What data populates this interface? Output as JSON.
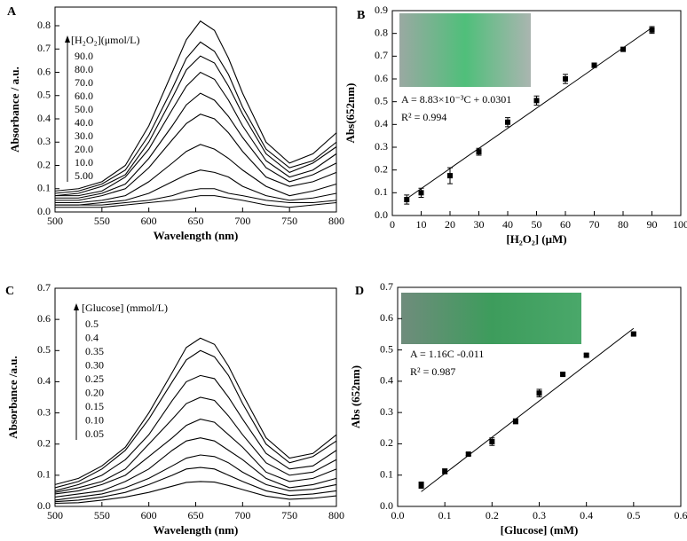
{
  "chart_data": [
    {
      "type": "line",
      "panel_label": "A",
      "xlabel": "Wavelength (nm)",
      "ylabel": "Absorbance / a.u.",
      "legend_title": "[H₂O₂](μmol/L)",
      "x": [
        500,
        525,
        550,
        575,
        600,
        625,
        640,
        655,
        670,
        685,
        700,
        725,
        750,
        775,
        800
      ],
      "series": [
        {
          "name": "90.0",
          "color": "#000000",
          "values": [
            0.09,
            0.1,
            0.13,
            0.2,
            0.37,
            0.6,
            0.74,
            0.82,
            0.78,
            0.66,
            0.51,
            0.3,
            0.21,
            0.25,
            0.34
          ]
        },
        {
          "name": "80.0",
          "color": "#000000",
          "values": [
            0.08,
            0.09,
            0.12,
            0.18,
            0.33,
            0.53,
            0.66,
            0.73,
            0.69,
            0.59,
            0.45,
            0.27,
            0.19,
            0.22,
            0.3
          ]
        },
        {
          "name": "70.0",
          "color": "#000000",
          "values": [
            0.07,
            0.08,
            0.11,
            0.16,
            0.3,
            0.49,
            0.61,
            0.67,
            0.64,
            0.54,
            0.42,
            0.25,
            0.17,
            0.21,
            0.28
          ]
        },
        {
          "name": "60.0",
          "color": "#000000",
          "values": [
            0.07,
            0.07,
            0.09,
            0.15,
            0.27,
            0.44,
            0.54,
            0.6,
            0.57,
            0.48,
            0.37,
            0.22,
            0.15,
            0.18,
            0.25
          ]
        },
        {
          "name": "50.0",
          "color": "#000000",
          "values": [
            0.06,
            0.06,
            0.08,
            0.12,
            0.23,
            0.37,
            0.46,
            0.51,
            0.48,
            0.41,
            0.32,
            0.19,
            0.13,
            0.16,
            0.21
          ]
        },
        {
          "name": "40.0",
          "color": "#000000",
          "values": [
            0.05,
            0.05,
            0.07,
            0.1,
            0.19,
            0.31,
            0.38,
            0.42,
            0.4,
            0.34,
            0.26,
            0.15,
            0.11,
            0.13,
            0.17
          ]
        },
        {
          "name": "30.0",
          "color": "#000000",
          "values": [
            0.04,
            0.04,
            0.05,
            0.07,
            0.13,
            0.21,
            0.26,
            0.29,
            0.27,
            0.23,
            0.18,
            0.11,
            0.07,
            0.09,
            0.12
          ]
        },
        {
          "name": "20.0",
          "color": "#000000",
          "values": [
            0.03,
            0.03,
            0.04,
            0.05,
            0.08,
            0.13,
            0.16,
            0.18,
            0.17,
            0.15,
            0.11,
            0.07,
            0.05,
            0.06,
            0.08
          ]
        },
        {
          "name": "10.0",
          "color": "#000000",
          "values": [
            0.03,
            0.03,
            0.03,
            0.04,
            0.05,
            0.07,
            0.09,
            0.1,
            0.1,
            0.08,
            0.07,
            0.05,
            0.04,
            0.04,
            0.05
          ]
        },
        {
          "name": "5.00",
          "color": "#000000",
          "values": [
            0.02,
            0.02,
            0.02,
            0.03,
            0.04,
            0.05,
            0.06,
            0.07,
            0.07,
            0.06,
            0.05,
            0.03,
            0.02,
            0.03,
            0.04
          ]
        }
      ],
      "xlim": [
        500,
        800
      ],
      "xticks": [
        500,
        550,
        600,
        650,
        700,
        750,
        800
      ],
      "ylim": [
        0,
        0.88
      ],
      "yticks": [
        {
          "value": 0,
          "label": "0.0"
        },
        0.1,
        0.2,
        0.3,
        0.4,
        0.5,
        0.6,
        0.7,
        0.8
      ]
    },
    {
      "type": "scatter",
      "panel_label": "B",
      "xlabel": "[H₂O₂] (μM)",
      "ylabel": "Abs(652nm)",
      "annotations": [
        "A = 8.83×10⁻³C + 0.0301",
        "R² = 0.994"
      ],
      "x": [
        5,
        10,
        20,
        30,
        40,
        50,
        60,
        70,
        80,
        90
      ],
      "values": [
        0.07,
        0.1,
        0.175,
        0.28,
        0.41,
        0.505,
        0.6,
        0.66,
        0.73,
        0.815
      ],
      "errors": [
        0.02,
        0.02,
        0.035,
        0.015,
        0.02,
        0.02,
        0.02,
        0.01,
        0.005,
        0.015
      ],
      "color": "#000000",
      "fit": {
        "x": [
          5,
          90
        ],
        "y": [
          0.074,
          0.825
        ]
      },
      "xlim": [
        0,
        100
      ],
      "xticks": [
        0,
        10,
        20,
        30,
        40,
        50,
        60,
        70,
        80,
        90,
        100
      ],
      "ylim": [
        0,
        0.9
      ],
      "yticks": [
        {
          "value": 0,
          "label": "0.0"
        },
        0.1,
        0.2,
        0.3,
        0.4,
        0.5,
        0.6,
        0.7,
        0.8,
        0.9
      ]
    },
    {
      "type": "line",
      "panel_label": "C",
      "xlabel": "Wavelength (nm)",
      "ylabel": "Absorbance /a.u.",
      "legend_title": "[Glucose] (mmol/L)",
      "x": [
        500,
        525,
        550,
        575,
        600,
        625,
        640,
        655,
        670,
        685,
        700,
        725,
        750,
        775,
        800
      ],
      "series": [
        {
          "name": "0.5",
          "color": "#000000",
          "values": [
            0.07,
            0.09,
            0.13,
            0.19,
            0.3,
            0.43,
            0.51,
            0.54,
            0.52,
            0.45,
            0.36,
            0.22,
            0.155,
            0.17,
            0.23
          ]
        },
        {
          "name": "0.4",
          "color": "#000000",
          "values": [
            0.06,
            0.08,
            0.12,
            0.18,
            0.28,
            0.4,
            0.47,
            0.5,
            0.48,
            0.42,
            0.33,
            0.2,
            0.14,
            0.16,
            0.21
          ]
        },
        {
          "name": "0.35",
          "color": "#000000",
          "values": [
            0.05,
            0.07,
            0.1,
            0.15,
            0.23,
            0.34,
            0.4,
            0.42,
            0.41,
            0.35,
            0.28,
            0.17,
            0.12,
            0.13,
            0.18
          ]
        },
        {
          "name": "0.30",
          "color": "#000000",
          "values": [
            0.045,
            0.06,
            0.08,
            0.12,
            0.2,
            0.28,
            0.33,
            0.35,
            0.34,
            0.29,
            0.23,
            0.14,
            0.1,
            0.11,
            0.15
          ]
        },
        {
          "name": "0.25",
          "color": "#000000",
          "values": [
            0.04,
            0.05,
            0.07,
            0.1,
            0.16,
            0.22,
            0.26,
            0.28,
            0.27,
            0.23,
            0.19,
            0.11,
            0.08,
            0.09,
            0.12
          ]
        },
        {
          "name": "0.20",
          "color": "#000000",
          "values": [
            0.03,
            0.04,
            0.05,
            0.08,
            0.12,
            0.18,
            0.21,
            0.22,
            0.21,
            0.18,
            0.15,
            0.09,
            0.06,
            0.07,
            0.09
          ]
        },
        {
          "name": "0.15",
          "color": "#000000",
          "values": [
            0.02,
            0.03,
            0.04,
            0.06,
            0.09,
            0.13,
            0.155,
            0.165,
            0.16,
            0.14,
            0.11,
            0.07,
            0.05,
            0.055,
            0.07
          ]
        },
        {
          "name": "0.10",
          "color": "#000000",
          "values": [
            0.015,
            0.02,
            0.03,
            0.045,
            0.07,
            0.1,
            0.12,
            0.125,
            0.12,
            0.1,
            0.08,
            0.05,
            0.035,
            0.04,
            0.05
          ]
        },
        {
          "name": "0.05",
          "color": "#000000",
          "values": [
            0.01,
            0.012,
            0.02,
            0.03,
            0.045,
            0.065,
            0.077,
            0.08,
            0.078,
            0.067,
            0.054,
            0.033,
            0.023,
            0.026,
            0.034
          ]
        }
      ],
      "xlim": [
        500,
        800
      ],
      "xticks": [
        500,
        550,
        600,
        650,
        700,
        750,
        800
      ],
      "ylim": [
        0,
        0.7
      ],
      "yticks": [
        {
          "value": 0,
          "label": "0.0"
        },
        0.1,
        0.2,
        0.3,
        0.4,
        0.5,
        0.6,
        0.7
      ]
    },
    {
      "type": "scatter",
      "panel_label": "D",
      "xlabel": "[Glucose] (mM)",
      "ylabel": "Abs (652nm)",
      "annotations": [
        "A = 1.16C -0.011",
        "R² = 0.987"
      ],
      "x": [
        0.05,
        0.1,
        0.15,
        0.2,
        0.25,
        0.3,
        0.35,
        0.4,
        0.5
      ],
      "values": [
        0.068,
        0.112,
        0.167,
        0.207,
        0.272,
        0.362,
        0.422,
        0.483,
        0.551
      ],
      "errors": [
        0.01,
        0.008,
        0.004,
        0.012,
        0.008,
        0.012,
        0.004,
        0.004,
        0.004
      ],
      "color": "#000000",
      "fit": {
        "x": [
          0.05,
          0.5
        ],
        "y": [
          0.047,
          0.569
        ]
      },
      "xlim": [
        0,
        0.6
      ],
      "xticks": [
        {
          "value": 0,
          "label": "0.0"
        },
        0.1,
        0.2,
        0.3,
        0.4,
        0.5,
        0.6
      ],
      "ylim": [
        0,
        0.7
      ],
      "yticks": [
        {
          "value": 0,
          "label": "0.0"
        },
        0.1,
        0.2,
        0.3,
        0.4,
        0.5,
        0.6,
        0.7
      ]
    }
  ]
}
